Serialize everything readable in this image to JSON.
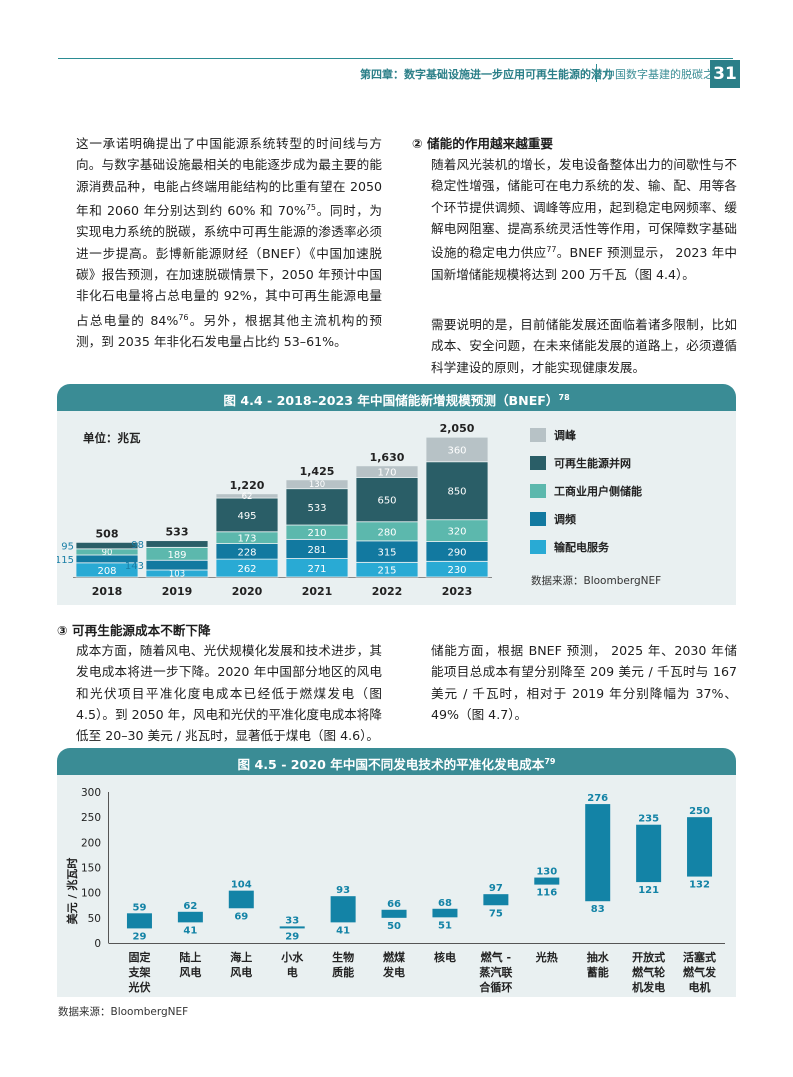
{
  "header": {
    "chapter": "第四章：数字基础设施进一步应用可再生能源的潜力",
    "book": "中国数字基建的脱碳之路",
    "page": "31"
  },
  "colors": {
    "teal_header": "#3a8c95",
    "panel_bg": "#e9f0f1",
    "peak": "#b7c2c6",
    "renewable": "#2a5e67",
    "ci": "#5cb8ad",
    "freq": "#1279a0",
    "dist": "#29aad4",
    "bar5": "#1383a6"
  },
  "left_para": {
    "text": "这一承诺明确提出了中国能源系统转型的时间线与方向。与数字基础设施最相关的电能逐步成为最主要的能源消费品种，电能占终端用能结构的比重有望在 2050 年和 2060 年分别达到约 60% 和 70%",
    "ref1": "75",
    "text2": "。同时，为实现电力系统的脱碳，系统中可再生能源的渗透率必须进一步提高。彭博新能源财经（BNEF）《中国加速脱碳》报告预测，在加速脱碳情景下，2050 年预计中国非化石电量将占总电量的 92%，其中可再生能源电量占总电量的 84%",
    "ref2": "76",
    "text3": "。另外，根据其他主流机构的预测，到 2035 年非化石发电量占比约 53–61%。"
  },
  "section2": {
    "title": "② 储能的作用越来越重要",
    "para1a": "随着风光装机的增长，发电设备整体出力的间歇性与不稳定性增强，储能可在电力系统的发、输、配、用等各个环节提供调频、调峰等应用，起到稳定电网频率、缓解电网阻塞、提高系统灵活性等作用，可保障数字基础设施的稳定电力供应",
    "ref": "77",
    "para1b": "。BNEF 预测显示， 2023 年中国新增储能规模将达到 200 万千瓦（图 4.4）。",
    "para2": "需要说明的是，目前储能发展还面临着诸多限制，比如成本、安全问题，在未来储能发展的道路上，必须遵循科学建设的原则，才能实现健康发展。"
  },
  "fig44": {
    "title": "图 4.4 - 2018–2023 年中国储能新增规模预测（BNEF）",
    "ref": "78",
    "unit": "单位：兆瓦",
    "source": "数据来源：BloombergNEF",
    "legend": [
      {
        "label": "调峰",
        "color": "#b7c2c6"
      },
      {
        "label": "可再生能源并网",
        "color": "#2a5e67"
      },
      {
        "label": "工商业用户侧储能",
        "color": "#5cb8ad"
      },
      {
        "label": "调频",
        "color": "#1279a0"
      },
      {
        "label": "输配电服务",
        "color": "#29aad4"
      }
    ]
  },
  "section3": {
    "title": "③ 可再生能源成本不断下降",
    "left": "成本方面，随着风电、光伏规模化发展和技术进步，其发电成本将进一步下降。2020 年中国部分地区的风电和光伏项目平准化度电成本已经低于燃煤发电（图 4.5）。到 2050 年，风电和光伏的平准化度电成本将降低至 20–30 美元 / 兆瓦时，显著低于煤电（图 4.6）。",
    "right": "储能方面，根据 BNEF 预测， 2025 年、2030 年储能项目总成本有望分别降至 209 美元 / 千瓦时与 167 美元 / 千瓦时，相对于 2019 年分别降幅为 37%、49%（图 4.7）。"
  },
  "fig45": {
    "title": "图 4.5 - 2020 年中国不同发电技术的平准化发电成本",
    "ref": "79",
    "ylabel": "美元 / 兆瓦时",
    "source": "数据来源：BloombergNEF"
  },
  "chart_data": [
    {
      "type": "bar",
      "stacked": true,
      "title": "图 4.4 - 2018–2023 年中国储能新增规模预测（BNEF）",
      "unit": "单位：兆瓦",
      "categories": [
        "2018",
        "2019",
        "2020",
        "2021",
        "2022",
        "2023"
      ],
      "totals": [
        "508",
        "533",
        "1,220",
        "1,425",
        "1,630",
        "2,050"
      ],
      "series": [
        {
          "name": "输配电服务",
          "values": [
            208,
            103,
            262,
            271,
            215,
            230
          ]
        },
        {
          "name": "调频",
          "values": [
            115,
            143,
            228,
            281,
            315,
            290
          ]
        },
        {
          "name": "工商业用户侧储能",
          "values": [
            90,
            189,
            173,
            210,
            280,
            320
          ]
        },
        {
          "name": "可再生能源并网",
          "values": [
            95,
            98,
            495,
            533,
            650,
            850
          ]
        },
        {
          "name": "调峰",
          "values": [
            0,
            0,
            62,
            130,
            170,
            360
          ]
        }
      ]
    },
    {
      "type": "bar",
      "floating": true,
      "title": "图 4.5 - 2020 年中国不同发电技术的平准化发电成本",
      "ylabel": "美元 / 兆瓦时",
      "ylim": [
        0,
        300
      ],
      "yticks": [
        0,
        50,
        100,
        150,
        200,
        250,
        300
      ],
      "categories": [
        "固定支架光伏",
        "陆上风电",
        "海上风电",
        "小水电",
        "生物质能",
        "燃煤发电",
        "核电",
        "燃气 - 蒸汽联合循环",
        "光热",
        "抽水蓄能",
        "开放式燃气轮机发电",
        "活塞式燃气发电机"
      ],
      "category_lines": [
        [
          "固定",
          "支架",
          "光伏"
        ],
        [
          "陆上",
          "风电"
        ],
        [
          "海上",
          "风电"
        ],
        [
          "小水",
          "电"
        ],
        [
          "生物",
          "质能"
        ],
        [
          "燃煤",
          "发电"
        ],
        [
          "核电"
        ],
        [
          "燃气 -",
          "蒸汽联",
          "合循环"
        ],
        [
          "光热"
        ],
        [
          "抽水",
          "蓄能"
        ],
        [
          "开放式",
          "燃气轮",
          "机发电"
        ],
        [
          "活塞式",
          "燃气发",
          "电机"
        ]
      ],
      "low": [
        29,
        41,
        69,
        29,
        41,
        50,
        51,
        75,
        116,
        83,
        121,
        132
      ],
      "high": [
        59,
        62,
        104,
        33,
        93,
        66,
        68,
        97,
        130,
        276,
        235,
        250
      ]
    }
  ]
}
